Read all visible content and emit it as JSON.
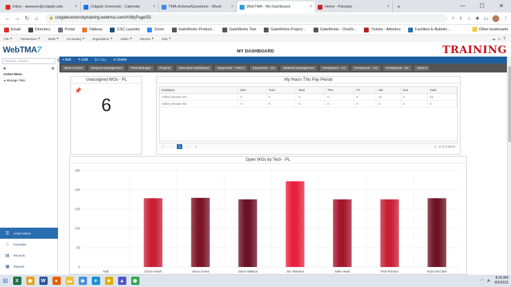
{
  "browser": {
    "tabs": [
      {
        "label": "Inbox - aweaver@colgate.edu",
        "icon": "gmail-icon",
        "color": "#d93025"
      },
      {
        "label": "Colgate University - Calendar",
        "icon": "calendar-icon",
        "color": "#1a73e8"
      },
      {
        "label": "TMA-Actions/Questions - Week",
        "icon": "docs-icon",
        "color": "#4285f4"
      },
      {
        "label": "WebTMA - My Dashboard",
        "icon": "webtma-icon",
        "color": "#2a9fd6"
      },
      {
        "label": "Home - Panopto",
        "icon": "panopto-icon",
        "color": "#c62828"
      }
    ],
    "url": "colgateuniversitytraining.webtma.com/#!/MyPage/55",
    "bookmarks": [
      {
        "label": "Email",
        "color": "#d93025"
      },
      {
        "label": "Directory",
        "color": "#444444"
      },
      {
        "label": "Portal",
        "color": "#6b7280"
      },
      {
        "label": "Tableau",
        "color": "#e8762d"
      },
      {
        "label": "CSC Laundry",
        "color": "#1f4e79"
      },
      {
        "label": "Zoom",
        "color": "#2d8cff"
      },
      {
        "label": "GateWorks Product...",
        "color": "#555555"
      },
      {
        "label": "GateWorks Test",
        "color": "#555555"
      },
      {
        "label": "GateWorks Project...",
        "color": "#555555"
      },
      {
        "label": "GateWorks - OneDr...",
        "color": "#555555"
      },
      {
        "label": "Tickets - Athletics",
        "color": "#b22222"
      },
      {
        "label": "Facilities E-Bulletin...",
        "color": "#2a6db0"
      }
    ],
    "other_bookmarks": "Other bookmarks"
  },
  "app": {
    "menu": [
      "File",
      "Transactions",
      "Maint",
      "Accounting",
      "Organization",
      "Admin",
      "Reports",
      "Help"
    ],
    "logo": "WebTMA",
    "page_title": "MY DASHBOARD",
    "training_label": "TRAINING",
    "find_placeholder": "Find Text - Search",
    "left": {
      "title": "Action Menu",
      "item": "Manage Tabs",
      "bottom": [
        {
          "label": "Action Menu",
          "icon": "menu-icon",
          "active": true
        },
        {
          "label": "Favorites",
          "icon": "star-icon",
          "active": false
        },
        {
          "label": "Recents",
          "icon": "recent-icon",
          "active": false
        },
        {
          "label": "Reports",
          "icon": "report-icon",
          "active": false
        }
      ]
    },
    "toolbar": {
      "add": "+ Add",
      "edit": "✎ Edit",
      "copy": "⧉ Copy",
      "delete": "✕ Delete"
    },
    "nav_tabs": [
      "Work Control",
      "Request Management",
      "Fleet Manager",
      "Projects",
      "Executive Dashboard",
      "Supervisor - ARCH",
      "Supervisor - CU",
      "Material Management",
      "Foreperson - CA",
      "Foreperson - CU",
      "Foreperson - EL",
      "More ▾"
    ]
  },
  "widgets": {
    "unassigned": {
      "title": "Unassigned WOs - PL",
      "value": "6"
    },
    "hours": {
      "title": "My Hours This Pay Period",
      "columns": [
        "Employee",
        "Mon",
        "Tues",
        "Wed",
        "Thur",
        "Fri",
        "Sat",
        "Sun",
        "Total"
      ],
      "rows": [
        [
          "Ashley Weaver W1",
          "0",
          "0",
          "0",
          "0",
          "0",
          "12",
          "0",
          "12"
        ],
        [
          "Ashley Weaver W2",
          "0",
          "0",
          "0",
          "0",
          "0",
          "0",
          "0",
          "0"
        ]
      ],
      "pager": {
        "current": "1",
        "info": "1 - 2 of 2 items"
      }
    }
  },
  "chart_data": {
    "type": "bar",
    "title": "Open WOs by Tech - PL",
    "categories": [
      "Null",
      "Chuck Hatch",
      "Jason Green",
      "Jason Wallace",
      "Jim Albertina",
      "Mike Head",
      "Rick Preston",
      "Ryan McCabe"
    ],
    "values": [
      0,
      178,
      179,
      175,
      222,
      175,
      175,
      178
    ],
    "ylim": [
      0,
      250
    ],
    "yticks": [
      0,
      50,
      100,
      150,
      200,
      250
    ],
    "colors": [
      "#c81f35",
      "#c81f35",
      "#7a1426",
      "#6a1224",
      "#e8213f",
      "#a5162d",
      "#c81f35",
      "#6e1325"
    ]
  },
  "taskbar": {
    "apps": [
      {
        "icon": "excel-icon",
        "color": "#1e7145",
        "glyph": "X"
      },
      {
        "icon": "chrome-icon",
        "color": "#e5a21b",
        "glyph": "◉"
      },
      {
        "icon": "word-icon",
        "color": "#2b579a",
        "glyph": "W"
      },
      {
        "icon": "firefox-icon",
        "color": "#e66000",
        "glyph": "●"
      },
      {
        "icon": "explorer-icon",
        "color": "#f0c040",
        "glyph": "▬"
      },
      {
        "icon": "app-icon",
        "color": "#4a90d9",
        "glyph": "◆"
      },
      {
        "icon": "edge-icon",
        "color": "#1b8fd8",
        "glyph": "e"
      },
      {
        "icon": "notes-icon",
        "color": "#e0b000",
        "glyph": "■"
      },
      {
        "icon": "teams-icon",
        "color": "#5059c9",
        "glyph": "▲"
      },
      {
        "icon": "chrome-icon",
        "color": "#34a853",
        "glyph": "◉"
      }
    ],
    "time": "8:20 AM",
    "date": "8/5/2023"
  }
}
